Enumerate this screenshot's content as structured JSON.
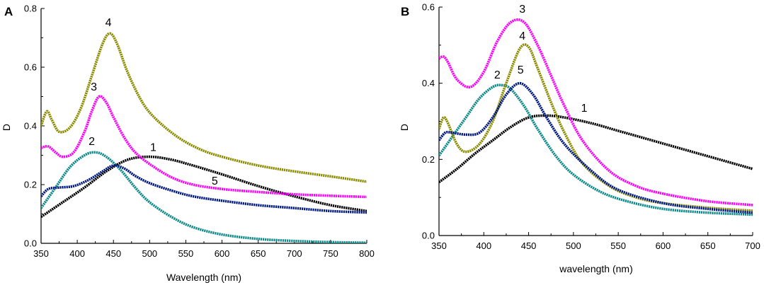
{
  "chart_data": [
    {
      "panel": "A",
      "type": "line",
      "title": "",
      "xlabel": "Wavelength (nm)",
      "ylabel": "D",
      "xlim": [
        350,
        800
      ],
      "ylim": [
        0,
        0.8
      ],
      "xticks": [
        350,
        400,
        450,
        500,
        550,
        600,
        650,
        700,
        750,
        800
      ],
      "yticks": [
        0.0,
        0.2,
        0.4,
        0.6,
        0.8
      ],
      "ytick_labels": [
        "0.0",
        "0.2",
        "0.4",
        "0.6",
        "0.8"
      ],
      "grid": false,
      "series": [
        {
          "name": "1",
          "color": "#000000",
          "x": [
            350,
            380,
            410,
            440,
            470,
            500,
            530,
            560,
            600,
            650,
            700,
            750,
            800
          ],
          "y": [
            0.09,
            0.14,
            0.19,
            0.245,
            0.285,
            0.295,
            0.285,
            0.265,
            0.235,
            0.195,
            0.16,
            0.13,
            0.11
          ],
          "label_at": [
            505,
            0.315
          ]
        },
        {
          "name": "2",
          "color": "#0f8a8a",
          "x": [
            350,
            370,
            390,
            410,
            425,
            440,
            460,
            480,
            500,
            530,
            560,
            600,
            650,
            700,
            750,
            800
          ],
          "y": [
            0.12,
            0.19,
            0.26,
            0.3,
            0.31,
            0.295,
            0.25,
            0.19,
            0.14,
            0.09,
            0.055,
            0.03,
            0.015,
            0.008,
            0.004,
            0.002
          ],
          "label_at": [
            420,
            0.335
          ]
        },
        {
          "name": "3",
          "color": "#ff00ff",
          "x": [
            350,
            360,
            370,
            380,
            395,
            410,
            420,
            430,
            440,
            450,
            465,
            480,
            500,
            530,
            560,
            600,
            650,
            700,
            750,
            800
          ],
          "y": [
            0.325,
            0.33,
            0.31,
            0.295,
            0.31,
            0.38,
            0.45,
            0.5,
            0.48,
            0.43,
            0.36,
            0.31,
            0.27,
            0.225,
            0.2,
            0.185,
            0.175,
            0.167,
            0.162,
            0.158
          ],
          "label_at": [
            423,
            0.52
          ]
        },
        {
          "name": "4",
          "color": "#8b8b00",
          "x": [
            350,
            358,
            365,
            375,
            390,
            405,
            420,
            435,
            445,
            455,
            470,
            490,
            510,
            540,
            570,
            600,
            650,
            700,
            750,
            800
          ],
          "y": [
            0.4,
            0.45,
            0.42,
            0.38,
            0.395,
            0.46,
            0.57,
            0.68,
            0.715,
            0.68,
            0.58,
            0.48,
            0.42,
            0.36,
            0.32,
            0.295,
            0.265,
            0.245,
            0.228,
            0.21
          ],
          "label_at": [
            443,
            0.74
          ]
        },
        {
          "name": "5",
          "color": "#001a80",
          "x": [
            350,
            360,
            375,
            395,
            415,
            435,
            450,
            465,
            480,
            500,
            530,
            560,
            600,
            650,
            700,
            750,
            800
          ],
          "y": [
            0.16,
            0.185,
            0.19,
            0.195,
            0.215,
            0.245,
            0.265,
            0.255,
            0.23,
            0.205,
            0.18,
            0.16,
            0.145,
            0.13,
            0.12,
            0.11,
            0.105
          ],
          "label_at": [
            590,
            0.2
          ]
        }
      ]
    },
    {
      "panel": "B",
      "type": "line",
      "title": "",
      "xlabel": "wavelength (nm)",
      "ylabel": "D",
      "xlim": [
        350,
        700
      ],
      "ylim": [
        0,
        0.6
      ],
      "xticks": [
        350,
        400,
        450,
        500,
        550,
        600,
        650,
        700
      ],
      "yticks": [
        0.0,
        0.2,
        0.4,
        0.6
      ],
      "ytick_labels": [
        "0.0",
        "0.2",
        "0.4",
        "0.6"
      ],
      "grid": false,
      "series": [
        {
          "name": "1",
          "color": "#000000",
          "x": [
            350,
            370,
            390,
            410,
            430,
            450,
            470,
            490,
            520,
            550,
            580,
            610,
            640,
            670,
            700
          ],
          "y": [
            0.14,
            0.175,
            0.215,
            0.25,
            0.285,
            0.31,
            0.315,
            0.31,
            0.295,
            0.275,
            0.255,
            0.235,
            0.215,
            0.195,
            0.175
          ],
          "label_at": [
            512,
            0.325
          ]
        },
        {
          "name": "2",
          "color": "#0f8a8a",
          "x": [
            350,
            365,
            380,
            395,
            410,
            420,
            430,
            445,
            460,
            480,
            500,
            530,
            560,
            600,
            650,
            700
          ],
          "y": [
            0.21,
            0.26,
            0.31,
            0.36,
            0.39,
            0.395,
            0.385,
            0.34,
            0.28,
            0.21,
            0.16,
            0.115,
            0.09,
            0.07,
            0.06,
            0.055
          ],
          "label_at": [
            415,
            0.412
          ]
        },
        {
          "name": "3",
          "color": "#ff00ff",
          "x": [
            350,
            355,
            360,
            370,
            385,
            400,
            415,
            430,
            445,
            460,
            475,
            490,
            510,
            540,
            570,
            600,
            650,
            700
          ],
          "y": [
            0.465,
            0.47,
            0.455,
            0.41,
            0.39,
            0.43,
            0.51,
            0.56,
            0.56,
            0.5,
            0.42,
            0.34,
            0.25,
            0.17,
            0.13,
            0.11,
            0.09,
            0.08
          ],
          "label_at": [
            443,
            0.585
          ]
        },
        {
          "name": "4",
          "color": "#8b8b00",
          "x": [
            350,
            355,
            360,
            370,
            380,
            395,
            410,
            425,
            440,
            450,
            460,
            475,
            490,
            510,
            540,
            570,
            600,
            650,
            700
          ],
          "y": [
            0.28,
            0.31,
            0.295,
            0.24,
            0.22,
            0.24,
            0.3,
            0.4,
            0.49,
            0.495,
            0.44,
            0.35,
            0.27,
            0.19,
            0.13,
            0.1,
            0.085,
            0.073,
            0.065
          ],
          "label_at": [
            443,
            0.515
          ]
        },
        {
          "name": "5",
          "color": "#001a80",
          "x": [
            350,
            357,
            365,
            380,
            395,
            410,
            425,
            440,
            455,
            470,
            490,
            520,
            550,
            600,
            650,
            700
          ],
          "y": [
            0.25,
            0.27,
            0.27,
            0.265,
            0.27,
            0.31,
            0.37,
            0.4,
            0.37,
            0.31,
            0.24,
            0.17,
            0.12,
            0.085,
            0.07,
            0.06
          ],
          "label_at": [
            441,
            0.425
          ]
        }
      ]
    }
  ]
}
